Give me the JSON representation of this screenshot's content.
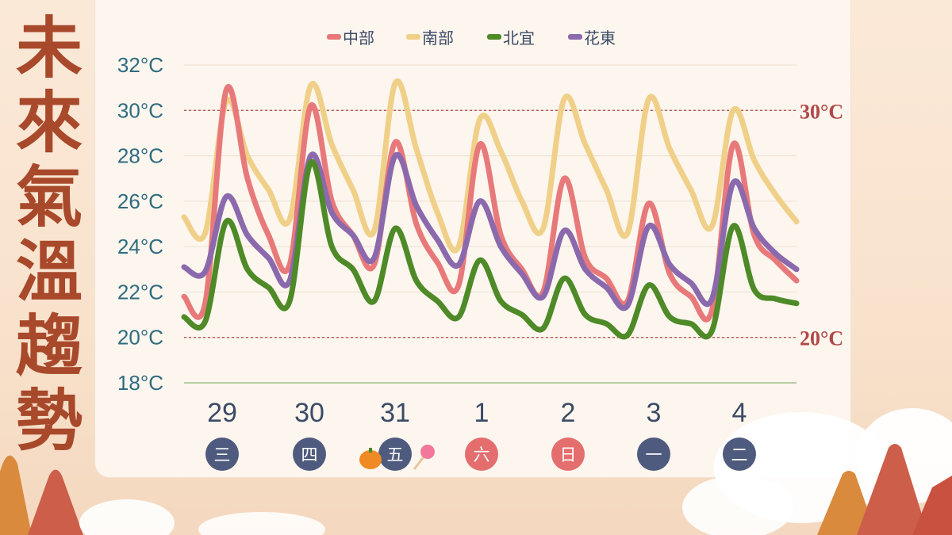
{
  "title_chars": [
    "未",
    "來",
    "氣",
    "溫",
    "趨",
    "勢"
  ],
  "chart_data": {
    "type": "line",
    "title": "未來氣溫趨勢",
    "ylim": [
      18,
      32
    ],
    "y_ticks": [
      "32°C",
      "30°C",
      "28°C",
      "26°C",
      "24°C",
      "22°C",
      "20°C",
      "18°C"
    ],
    "reference_lines": [
      {
        "value": 30,
        "label": "30°C"
      },
      {
        "value": 20,
        "label": "20°C"
      }
    ],
    "days": [
      "29",
      "30",
      "31",
      "1",
      "2",
      "3",
      "4"
    ],
    "weekdays": [
      {
        "label": "三",
        "color": "#4f5b7e"
      },
      {
        "label": "四",
        "color": "#4f5b7e"
      },
      {
        "label": "五",
        "color": "#4f5b7e"
      },
      {
        "label": "六",
        "color": "#e46e6e"
      },
      {
        "label": "日",
        "color": "#e46e6e"
      },
      {
        "label": "一",
        "color": "#4f5b7e"
      },
      {
        "label": "二",
        "color": "#4f5b7e"
      }
    ],
    "legend_position": "top",
    "series": [
      {
        "name": "南部",
        "color": "#f0d089",
        "values": [
          25.3,
          24.6,
          30.4,
          28.0,
          26.5,
          25.2,
          31.1,
          28.5,
          26.5,
          24.7,
          31.2,
          28.3,
          25.5,
          24.0,
          29.6,
          28.2,
          26.0,
          24.8,
          30.5,
          28.5,
          26.5,
          24.6,
          30.5,
          28.3,
          26.5,
          24.9,
          30.0,
          27.8,
          26.3,
          25.1
        ]
      },
      {
        "name": "中部",
        "color": "#e8797a",
        "values": [
          21.8,
          21.5,
          30.9,
          27.0,
          24.5,
          23.2,
          30.2,
          26.0,
          24.5,
          23.2,
          28.6,
          25.0,
          23.3,
          22.3,
          28.5,
          24.5,
          23.0,
          22.0,
          27.0,
          23.5,
          22.6,
          21.6,
          25.9,
          22.8,
          21.8,
          21.2,
          28.5,
          24.5,
          23.4,
          22.5
        ]
      },
      {
        "name": "花東",
        "color": "#8b69ad",
        "values": [
          23.1,
          22.9,
          26.2,
          24.5,
          23.5,
          22.5,
          28.0,
          25.5,
          24.5,
          23.5,
          28.0,
          25.8,
          24.3,
          23.2,
          26.0,
          24.0,
          22.8,
          21.8,
          24.7,
          23.0,
          22.2,
          21.4,
          24.9,
          23.2,
          22.4,
          21.7,
          26.8,
          24.8,
          23.7,
          23.0
        ]
      },
      {
        "name": "北宜",
        "color": "#4e8a27",
        "values": [
          20.9,
          20.7,
          25.1,
          23.0,
          22.2,
          21.6,
          27.7,
          24.0,
          23.0,
          21.6,
          24.8,
          22.5,
          21.6,
          20.9,
          23.4,
          21.6,
          21.0,
          20.4,
          22.6,
          21.0,
          20.6,
          20.1,
          22.3,
          20.9,
          20.6,
          20.3,
          24.9,
          22.1,
          21.7,
          21.5
        ]
      }
    ]
  }
}
